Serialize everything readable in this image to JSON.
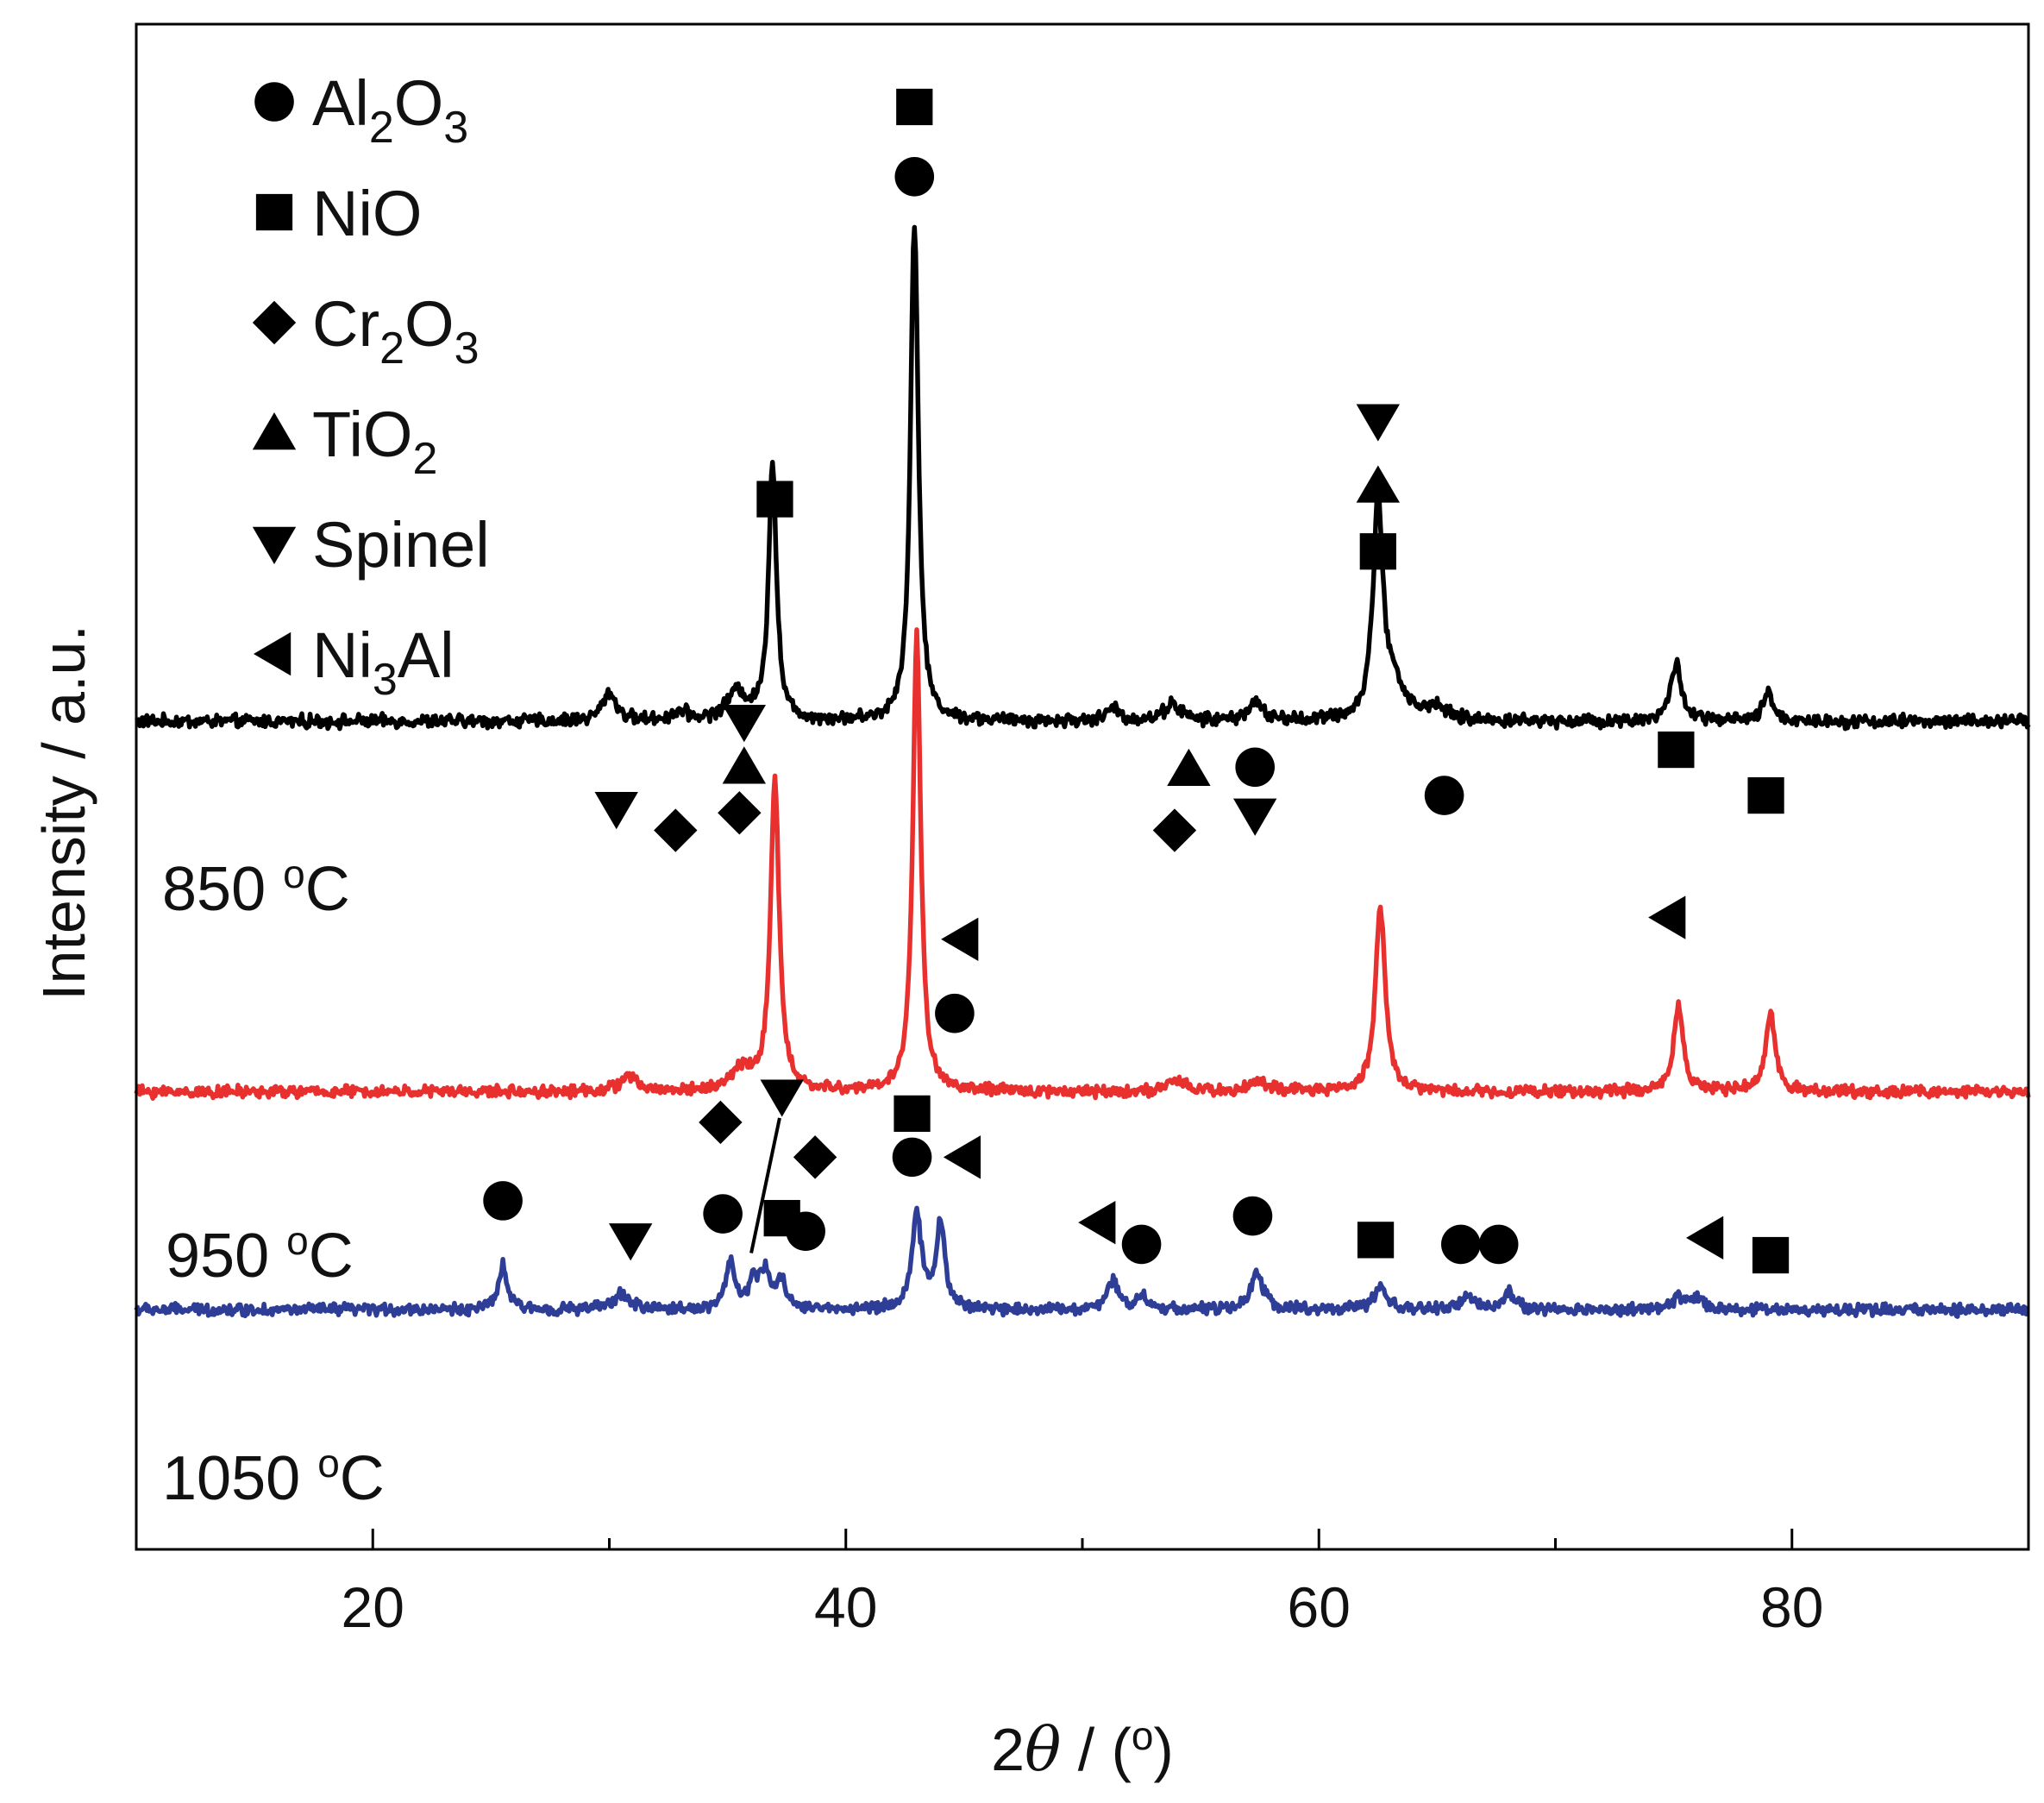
{
  "chart_data": {
    "type": "line",
    "title": "",
    "xlabel": "2θ / (o)",
    "ylabel": "Intensity / a.u.",
    "xlim": [
      10,
      90
    ],
    "xticks": [
      20,
      40,
      60,
      80
    ],
    "x_minor_ticks": [
      30,
      50,
      70
    ],
    "grid": false,
    "legend": {
      "placement": "top-left",
      "entries": [
        {
          "marker": "circle",
          "parts": [
            "Al",
            "2",
            "O",
            "3"
          ]
        },
        {
          "marker": "square",
          "parts": [
            "NiO"
          ]
        },
        {
          "marker": "diamond",
          "parts": [
            "Cr",
            "2",
            "O",
            "3"
          ]
        },
        {
          "marker": "triangle-up",
          "parts": [
            "TiO",
            "2"
          ]
        },
        {
          "marker": "triangle-down",
          "parts": [
            "Spinel"
          ]
        },
        {
          "marker": "triangle-left",
          "parts": [
            "Ni",
            "3",
            "Al"
          ]
        }
      ]
    },
    "series": [
      {
        "name": "850 oC",
        "label_parts": [
          "850 ",
          "o",
          "C"
        ],
        "color": "#000000",
        "baseline": 3.8,
        "noise": 0.045,
        "peaks": [
          {
            "x": 30.0,
            "h": 0.13,
            "w": 0.35
          },
          {
            "x": 33.0,
            "h": 0.04,
            "w": 0.4
          },
          {
            "x": 35.4,
            "h": 0.13,
            "w": 0.5
          },
          {
            "x": 36.9,
            "h": 1.18,
            "w": 0.2
          },
          {
            "x": 42.9,
            "h": 2.3,
            "w": 0.2
          },
          {
            "x": 51.3,
            "h": 0.06,
            "w": 0.3
          },
          {
            "x": 53.8,
            "h": 0.08,
            "w": 0.4
          },
          {
            "x": 57.3,
            "h": 0.08,
            "w": 0.4
          },
          {
            "x": 62.5,
            "h": 1.0,
            "w": 0.25
          },
          {
            "x": 63.2,
            "h": 0.15,
            "w": 0.5
          },
          {
            "x": 64.9,
            "h": 0.06,
            "w": 0.5
          },
          {
            "x": 75.1,
            "h": 0.26,
            "w": 0.28
          },
          {
            "x": 79.0,
            "h": 0.13,
            "w": 0.25
          }
        ]
      },
      {
        "name": "950 oC",
        "label_parts": [
          "950 ",
          "o",
          "C"
        ],
        "color": "#e8312e",
        "baseline": 2.1,
        "noise": 0.04,
        "peaks": [
          {
            "x": 30.8,
            "h": 0.07,
            "w": 0.4
          },
          {
            "x": 35.6,
            "h": 0.1,
            "w": 0.5
          },
          {
            "x": 37.0,
            "h": 1.42,
            "w": 0.22
          },
          {
            "x": 43.0,
            "h": 2.1,
            "w": 0.2
          },
          {
            "x": 54.0,
            "h": 0.05,
            "w": 0.4
          },
          {
            "x": 57.4,
            "h": 0.05,
            "w": 0.4
          },
          {
            "x": 62.6,
            "h": 0.85,
            "w": 0.25
          },
          {
            "x": 75.2,
            "h": 0.39,
            "w": 0.25
          },
          {
            "x": 79.1,
            "h": 0.35,
            "w": 0.25
          }
        ]
      },
      {
        "name": "1050 oC",
        "label_parts": [
          "1050 ",
          "o",
          "C"
        ],
        "color": "#2e3e96",
        "baseline": 1.1,
        "noise": 0.04,
        "peaks": [
          {
            "x": 25.5,
            "h": 0.2,
            "w": 0.22
          },
          {
            "x": 30.5,
            "h": 0.07,
            "w": 0.4
          },
          {
            "x": 35.1,
            "h": 0.22,
            "w": 0.22
          },
          {
            "x": 36.1,
            "h": 0.12,
            "w": 0.25
          },
          {
            "x": 36.6,
            "h": 0.16,
            "w": 0.25
          },
          {
            "x": 37.3,
            "h": 0.12,
            "w": 0.25
          },
          {
            "x": 43.0,
            "h": 0.42,
            "w": 0.25
          },
          {
            "x": 44.0,
            "h": 0.4,
            "w": 0.22
          },
          {
            "x": 51.3,
            "h": 0.13,
            "w": 0.28
          },
          {
            "x": 52.5,
            "h": 0.06,
            "w": 0.3
          },
          {
            "x": 57.4,
            "h": 0.17,
            "w": 0.3
          },
          {
            "x": 62.6,
            "h": 0.1,
            "w": 0.3
          },
          {
            "x": 66.3,
            "h": 0.06,
            "w": 0.3
          },
          {
            "x": 68.0,
            "h": 0.08,
            "w": 0.3
          },
          {
            "x": 75.2,
            "h": 0.05,
            "w": 0.3
          },
          {
            "x": 76.0,
            "h": 0.06,
            "w": 0.3
          }
        ]
      }
    ],
    "annotations": [
      {
        "marker": "triangle-down",
        "x": 30.3,
        "y": 3.4
      },
      {
        "marker": "diamond",
        "x": 32.8,
        "y": 3.3
      },
      {
        "marker": "diamond",
        "x": 35.5,
        "y": 3.38
      },
      {
        "marker": "triangle-up",
        "x": 35.7,
        "y": 3.59
      },
      {
        "marker": "triangle-down",
        "x": 35.7,
        "y": 3.8
      },
      {
        "marker": "square",
        "x": 37.0,
        "y": 4.82
      },
      {
        "marker": "circle",
        "x": 42.9,
        "y": 6.3
      },
      {
        "marker": "square",
        "x": 42.9,
        "y": 6.62
      },
      {
        "marker": "diamond",
        "x": 53.9,
        "y": 3.3
      },
      {
        "marker": "triangle-up",
        "x": 54.5,
        "y": 3.58
      },
      {
        "marker": "circle",
        "x": 57.3,
        "y": 3.59
      },
      {
        "marker": "triangle-down",
        "x": 57.3,
        "y": 3.37
      },
      {
        "marker": "square",
        "x": 62.5,
        "y": 4.58
      },
      {
        "marker": "triangle-up",
        "x": 62.5,
        "y": 4.88
      },
      {
        "marker": "triangle-down",
        "x": 62.5,
        "y": 5.18
      },
      {
        "marker": "circle",
        "x": 65.3,
        "y": 3.46
      },
      {
        "marker": "square",
        "x": 75.1,
        "y": 3.67
      },
      {
        "marker": "square",
        "x": 78.9,
        "y": 3.46
      },
      {
        "marker": "triangle-left",
        "x": 44.9,
        "y": 2.8
      },
      {
        "marker": "circle",
        "x": 44.6,
        "y": 2.46
      },
      {
        "marker": "triangle-left",
        "x": 74.8,
        "y": 2.9
      },
      {
        "marker": "circle",
        "x": 25.5,
        "y": 1.6
      },
      {
        "marker": "triangle-down",
        "x": 30.9,
        "y": 1.42
      },
      {
        "marker": "circle",
        "x": 34.8,
        "y": 1.54
      },
      {
        "marker": "diamond",
        "x": 34.7,
        "y": 1.96
      },
      {
        "marker": "triangle-down",
        "x": 37.3,
        "y": 2.08
      },
      {
        "marker": "square",
        "x": 37.3,
        "y": 1.52
      },
      {
        "marker": "circle",
        "x": 38.3,
        "y": 1.46
      },
      {
        "marker": "diamond",
        "x": 38.7,
        "y": 1.8
      },
      {
        "marker": "square",
        "x": 42.8,
        "y": 2.0
      },
      {
        "marker": "circle",
        "x": 42.8,
        "y": 1.8
      },
      {
        "marker": "triangle-left",
        "x": 45.0,
        "y": 1.8
      },
      {
        "marker": "triangle-left",
        "x": 50.7,
        "y": 1.5
      },
      {
        "marker": "circle",
        "x": 52.5,
        "y": 1.4
      },
      {
        "marker": "circle",
        "x": 57.2,
        "y": 1.53
      },
      {
        "marker": "square",
        "x": 62.4,
        "y": 1.42
      },
      {
        "marker": "circle",
        "x": 66.0,
        "y": 1.4
      },
      {
        "marker": "circle",
        "x": 67.6,
        "y": 1.4
      },
      {
        "marker": "triangle-left",
        "x": 76.4,
        "y": 1.43
      },
      {
        "marker": "square",
        "x": 79.1,
        "y": 1.35
      }
    ]
  }
}
